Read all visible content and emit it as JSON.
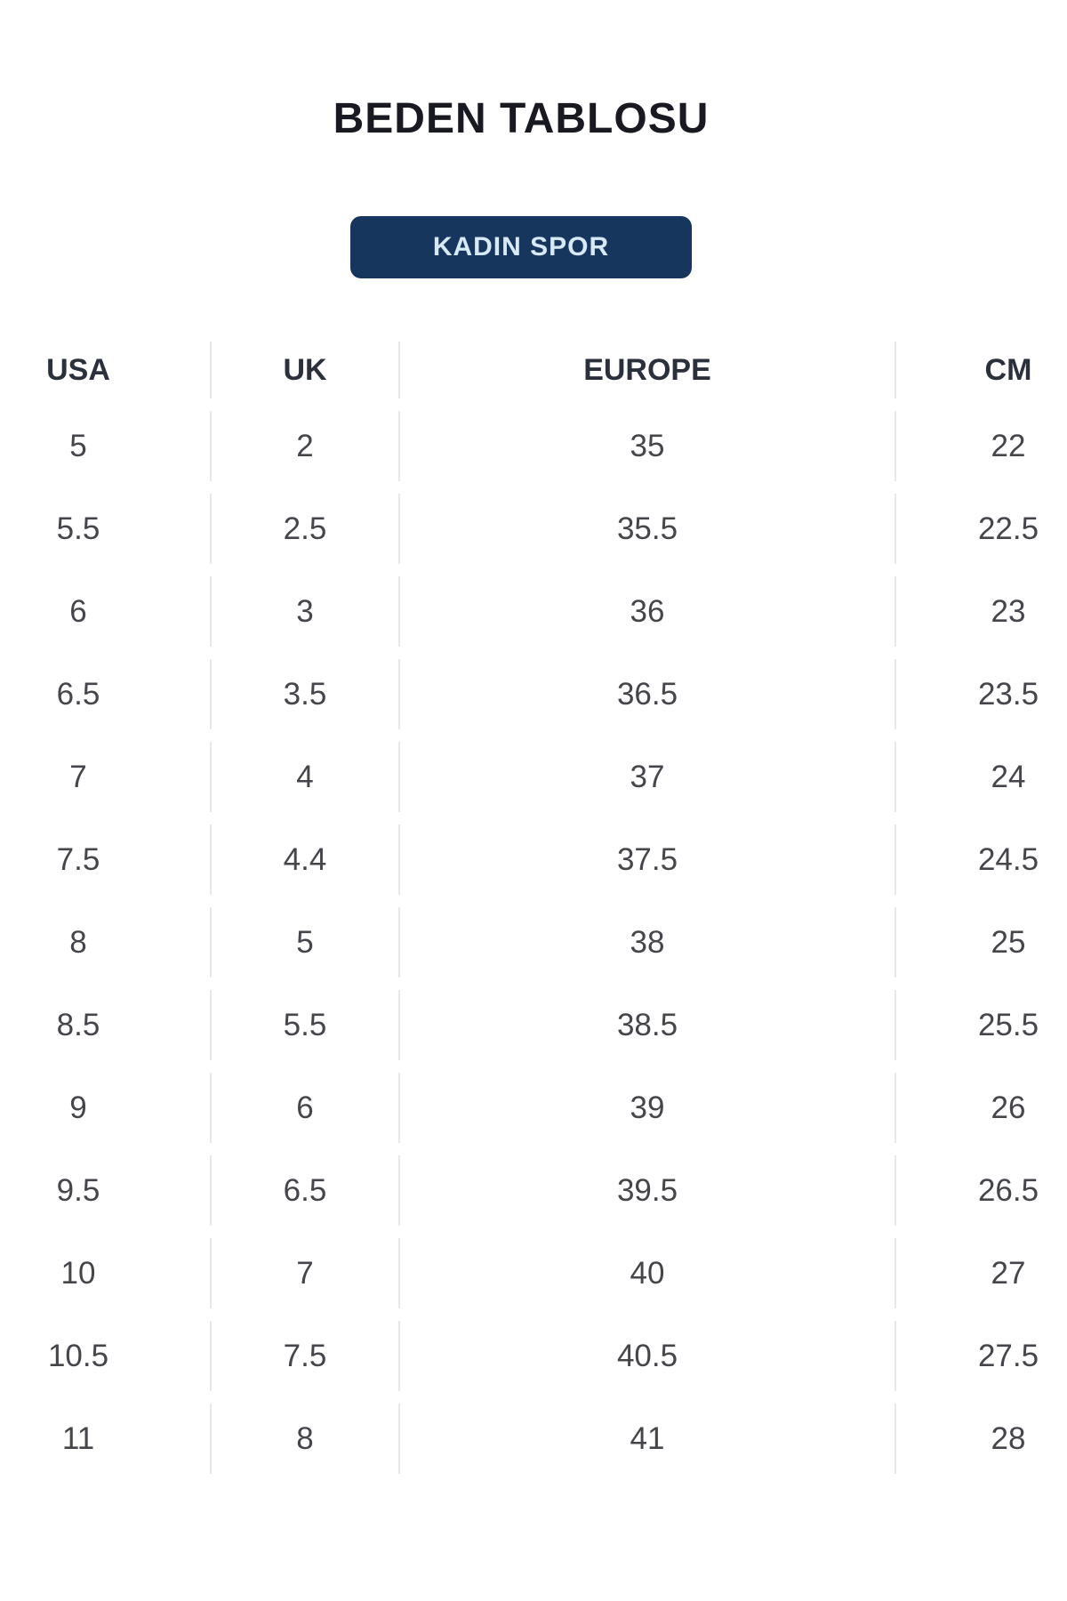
{
  "page": {
    "title": "BEDEN TABLOSU"
  },
  "category_button": {
    "label": "KADIN SPOR",
    "bg_color": "#17365e",
    "text_color": "#d8e9f6"
  },
  "table": {
    "columns": [
      "USA",
      "UK",
      "EUROPE",
      "CM"
    ],
    "rows": [
      [
        "5",
        "2",
        "35",
        "22"
      ],
      [
        "5.5",
        "2.5",
        "35.5",
        "22.5"
      ],
      [
        "6",
        "3",
        "36",
        "23"
      ],
      [
        "6.5",
        "3.5",
        "36.5",
        "23.5"
      ],
      [
        "7",
        "4",
        "37",
        "24"
      ],
      [
        "7.5",
        "4.4",
        "37.5",
        "24.5"
      ],
      [
        "8",
        "5",
        "38",
        "25"
      ],
      [
        "8.5",
        "5.5",
        "38.5",
        "25.5"
      ],
      [
        "9",
        "6",
        "39",
        "26"
      ],
      [
        "9.5",
        "6.5",
        "39.5",
        "26.5"
      ],
      [
        "10",
        "7",
        "40",
        "27"
      ],
      [
        "10.5",
        "7.5",
        "40.5",
        "27.5"
      ],
      [
        "11",
        "8",
        "41",
        "28"
      ]
    ],
    "divider_color": "#e8e8ea"
  },
  "text_colors": {
    "title": "#191922",
    "header": "#2b313c",
    "cell": "#45454b"
  }
}
